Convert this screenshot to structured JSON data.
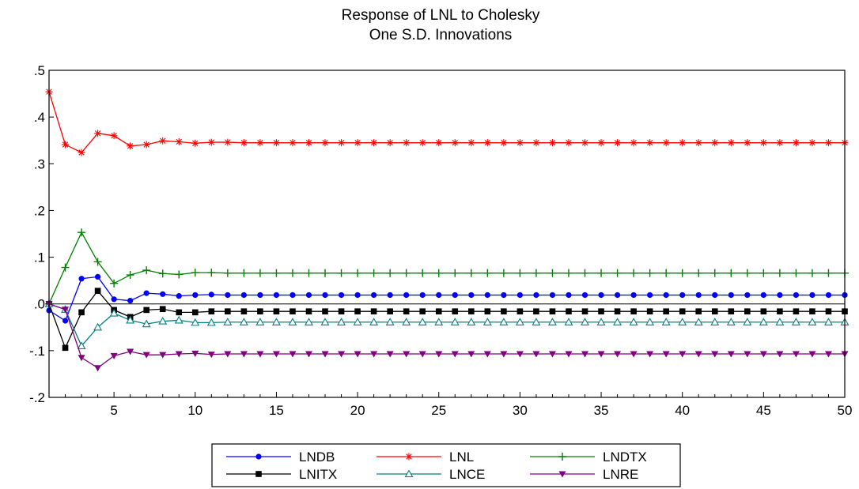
{
  "chart_data": {
    "type": "line",
    "title_lines": [
      "Response of LNL to Cholesky",
      "One S.D. Innovations"
    ],
    "xlim": [
      1,
      50
    ],
    "ylim": [
      -0.2,
      0.5
    ],
    "x_ticks": [
      5,
      10,
      15,
      20,
      25,
      30,
      35,
      40,
      45,
      50
    ],
    "y_ticks": [
      {
        "value": 0.5,
        "label": ".5"
      },
      {
        "value": 0.4,
        "label": ".4"
      },
      {
        "value": 0.3,
        "label": ".3"
      },
      {
        "value": 0.2,
        "label": ".2"
      },
      {
        "value": 0.1,
        "label": ".1"
      },
      {
        "value": 0.0,
        "label": ".0"
      },
      {
        "value": -0.1,
        "label": "-.1"
      },
      {
        "value": -0.2,
        "label": "-.2"
      }
    ],
    "zero_line": true,
    "legend_position": "bottom-center",
    "series": [
      {
        "name": "LNDB",
        "color": "#0000ff",
        "marker": "circle",
        "values": [
          -0.014,
          -0.036,
          0.054,
          0.058,
          0.01,
          0.007,
          0.023,
          0.021,
          0.017,
          0.019,
          0.02,
          0.019,
          0.019,
          0.019,
          0.019,
          0.019,
          0.019,
          0.019,
          0.019,
          0.019,
          0.019,
          0.019,
          0.019,
          0.019,
          0.019,
          0.019,
          0.019,
          0.019,
          0.019,
          0.019,
          0.019,
          0.019,
          0.019,
          0.019,
          0.019,
          0.019,
          0.019,
          0.019,
          0.019,
          0.019,
          0.019,
          0.019,
          0.019,
          0.019,
          0.019,
          0.019,
          0.019,
          0.019,
          0.019,
          0.019
        ]
      },
      {
        "name": "LNL",
        "color": "#ff0000",
        "marker": "asterisk",
        "values": [
          0.454,
          0.341,
          0.324,
          0.365,
          0.36,
          0.338,
          0.341,
          0.349,
          0.347,
          0.344,
          0.346,
          0.346,
          0.345,
          0.345,
          0.345,
          0.345,
          0.345,
          0.345,
          0.345,
          0.345,
          0.345,
          0.345,
          0.345,
          0.345,
          0.345,
          0.345,
          0.345,
          0.345,
          0.345,
          0.345,
          0.345,
          0.345,
          0.345,
          0.345,
          0.345,
          0.345,
          0.345,
          0.345,
          0.345,
          0.345,
          0.345,
          0.345,
          0.345,
          0.345,
          0.345,
          0.345,
          0.345,
          0.345,
          0.345,
          0.345
        ]
      },
      {
        "name": "LNDTX",
        "color": "#008000",
        "marker": "plus",
        "values": [
          0.0,
          0.078,
          0.153,
          0.09,
          0.044,
          0.062,
          0.072,
          0.065,
          0.063,
          0.067,
          0.067,
          0.066,
          0.066,
          0.066,
          0.066,
          0.066,
          0.066,
          0.066,
          0.066,
          0.066,
          0.066,
          0.066,
          0.066,
          0.066,
          0.066,
          0.066,
          0.066,
          0.066,
          0.066,
          0.066,
          0.066,
          0.066,
          0.066,
          0.066,
          0.066,
          0.066,
          0.066,
          0.066,
          0.066,
          0.066,
          0.066,
          0.066,
          0.066,
          0.066,
          0.066,
          0.066,
          0.066,
          0.066,
          0.066,
          0.066
        ]
      },
      {
        "name": "LNITX",
        "color": "#000000",
        "marker": "square",
        "values": [
          0.0,
          -0.094,
          -0.018,
          0.028,
          -0.013,
          -0.028,
          -0.013,
          -0.011,
          -0.018,
          -0.018,
          -0.016,
          -0.016,
          -0.016,
          -0.016,
          -0.016,
          -0.016,
          -0.016,
          -0.016,
          -0.016,
          -0.016,
          -0.016,
          -0.016,
          -0.016,
          -0.016,
          -0.016,
          -0.016,
          -0.016,
          -0.016,
          -0.016,
          -0.016,
          -0.016,
          -0.016,
          -0.016,
          -0.016,
          -0.016,
          -0.016,
          -0.016,
          -0.016,
          -0.016,
          -0.016,
          -0.016,
          -0.016,
          -0.016,
          -0.016,
          -0.016,
          -0.016,
          -0.016,
          -0.016,
          -0.016,
          -0.016
        ]
      },
      {
        "name": "LNCE",
        "color": "#008080",
        "marker": "triangle-up",
        "values": [
          0.0,
          -0.012,
          -0.09,
          -0.05,
          -0.02,
          -0.035,
          -0.043,
          -0.037,
          -0.035,
          -0.04,
          -0.04,
          -0.039,
          -0.039,
          -0.039,
          -0.039,
          -0.039,
          -0.039,
          -0.039,
          -0.039,
          -0.039,
          -0.039,
          -0.039,
          -0.039,
          -0.039,
          -0.039,
          -0.039,
          -0.039,
          -0.039,
          -0.039,
          -0.039,
          -0.039,
          -0.039,
          -0.039,
          -0.039,
          -0.039,
          -0.039,
          -0.039,
          -0.039,
          -0.039,
          -0.039,
          -0.039,
          -0.039,
          -0.039,
          -0.039,
          -0.039,
          -0.039,
          -0.039,
          -0.039,
          -0.039,
          -0.039
        ]
      },
      {
        "name": "LNRE",
        "color": "#800080",
        "marker": "triangle-down",
        "values": [
          0.0,
          -0.012,
          -0.115,
          -0.137,
          -0.111,
          -0.102,
          -0.109,
          -0.109,
          -0.107,
          -0.106,
          -0.108,
          -0.107,
          -0.107,
          -0.107,
          -0.107,
          -0.107,
          -0.107,
          -0.107,
          -0.107,
          -0.107,
          -0.107,
          -0.107,
          -0.107,
          -0.107,
          -0.107,
          -0.107,
          -0.107,
          -0.107,
          -0.107,
          -0.107,
          -0.107,
          -0.107,
          -0.107,
          -0.107,
          -0.107,
          -0.107,
          -0.107,
          -0.107,
          -0.107,
          -0.107,
          -0.107,
          -0.107,
          -0.107,
          -0.107,
          -0.107,
          -0.107,
          -0.107,
          -0.107,
          -0.107,
          -0.107
        ]
      }
    ]
  }
}
